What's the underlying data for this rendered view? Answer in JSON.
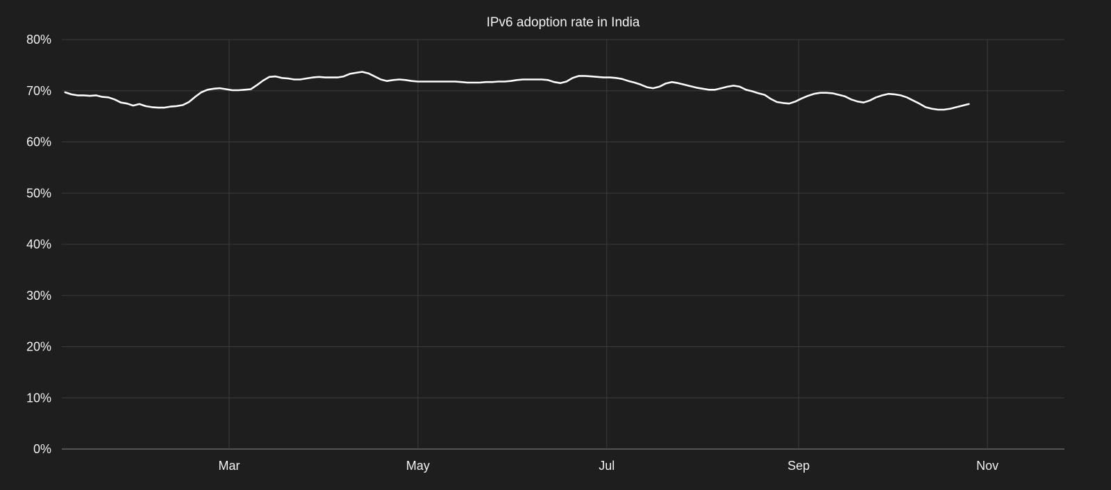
{
  "chart_data": {
    "type": "line",
    "title": "IPv6 adoption rate in India",
    "xlabel": "",
    "ylabel": "",
    "grid": true,
    "legend": "none",
    "colors": {
      "background": "#1e1e1e",
      "line": "#ffffff",
      "grid": "#3c3c3c",
      "text": "#f2f2f2"
    },
    "y_ticks": [
      "0%",
      "10%",
      "20%",
      "30%",
      "40%",
      "50%",
      "60%",
      "70%",
      "80%"
    ],
    "ylim": [
      0,
      80
    ],
    "x_ticks": [
      {
        "label": "Mar",
        "day": 59
      },
      {
        "label": "May",
        "day": 120
      },
      {
        "label": "Jul",
        "day": 181
      },
      {
        "label": "Sep",
        "day": 243
      },
      {
        "label": "Nov",
        "day": 304
      }
    ],
    "xlim": [
      6,
      329
    ],
    "series": [
      {
        "values": [
          [
            6,
            69.7
          ],
          [
            8,
            69.3
          ],
          [
            10,
            69.1
          ],
          [
            12,
            69.1
          ],
          [
            14,
            69.0
          ],
          [
            16,
            69.1
          ],
          [
            18,
            68.8
          ],
          [
            20,
            68.7
          ],
          [
            22,
            68.3
          ],
          [
            24,
            67.7
          ],
          [
            26,
            67.5
          ],
          [
            28,
            67.1
          ],
          [
            30,
            67.4
          ],
          [
            32,
            67.0
          ],
          [
            34,
            66.8
          ],
          [
            36,
            66.7
          ],
          [
            38,
            66.7
          ],
          [
            40,
            66.9
          ],
          [
            42,
            67.0
          ],
          [
            44,
            67.2
          ],
          [
            46,
            67.8
          ],
          [
            48,
            68.8
          ],
          [
            50,
            69.7
          ],
          [
            52,
            70.2
          ],
          [
            54,
            70.4
          ],
          [
            56,
            70.5
          ],
          [
            58,
            70.3
          ],
          [
            60,
            70.1
          ],
          [
            62,
            70.1
          ],
          [
            64,
            70.2
          ],
          [
            66,
            70.3
          ],
          [
            68,
            71.1
          ],
          [
            70,
            72.0
          ],
          [
            72,
            72.7
          ],
          [
            74,
            72.8
          ],
          [
            76,
            72.5
          ],
          [
            78,
            72.4
          ],
          [
            80,
            72.2
          ],
          [
            82,
            72.2
          ],
          [
            84,
            72.4
          ],
          [
            86,
            72.6
          ],
          [
            88,
            72.7
          ],
          [
            90,
            72.6
          ],
          [
            92,
            72.6
          ],
          [
            94,
            72.6
          ],
          [
            96,
            72.8
          ],
          [
            98,
            73.3
          ],
          [
            100,
            73.5
          ],
          [
            102,
            73.7
          ],
          [
            104,
            73.4
          ],
          [
            106,
            72.8
          ],
          [
            108,
            72.2
          ],
          [
            110,
            71.9
          ],
          [
            112,
            72.1
          ],
          [
            114,
            72.2
          ],
          [
            116,
            72.1
          ],
          [
            118,
            71.9
          ],
          [
            120,
            71.8
          ],
          [
            122,
            71.8
          ],
          [
            124,
            71.8
          ],
          [
            126,
            71.8
          ],
          [
            128,
            71.8
          ],
          [
            130,
            71.8
          ],
          [
            132,
            71.8
          ],
          [
            134,
            71.7
          ],
          [
            136,
            71.6
          ],
          [
            138,
            71.6
          ],
          [
            140,
            71.6
          ],
          [
            142,
            71.7
          ],
          [
            144,
            71.7
          ],
          [
            146,
            71.8
          ],
          [
            148,
            71.8
          ],
          [
            150,
            71.9
          ],
          [
            152,
            72.1
          ],
          [
            154,
            72.2
          ],
          [
            156,
            72.2
          ],
          [
            158,
            72.2
          ],
          [
            160,
            72.2
          ],
          [
            162,
            72.1
          ],
          [
            164,
            71.7
          ],
          [
            166,
            71.5
          ],
          [
            168,
            71.8
          ],
          [
            170,
            72.5
          ],
          [
            172,
            72.9
          ],
          [
            174,
            72.9
          ],
          [
            176,
            72.8
          ],
          [
            178,
            72.7
          ],
          [
            180,
            72.6
          ],
          [
            182,
            72.6
          ],
          [
            184,
            72.5
          ],
          [
            186,
            72.3
          ],
          [
            188,
            71.9
          ],
          [
            190,
            71.6
          ],
          [
            192,
            71.2
          ],
          [
            194,
            70.7
          ],
          [
            196,
            70.5
          ],
          [
            198,
            70.8
          ],
          [
            200,
            71.4
          ],
          [
            202,
            71.7
          ],
          [
            204,
            71.5
          ],
          [
            206,
            71.2
          ],
          [
            208,
            70.9
          ],
          [
            210,
            70.6
          ],
          [
            212,
            70.4
          ],
          [
            214,
            70.2
          ],
          [
            216,
            70.2
          ],
          [
            218,
            70.5
          ],
          [
            220,
            70.8
          ],
          [
            222,
            71.0
          ],
          [
            224,
            70.8
          ],
          [
            226,
            70.2
          ],
          [
            228,
            69.9
          ],
          [
            230,
            69.5
          ],
          [
            232,
            69.2
          ],
          [
            234,
            68.4
          ],
          [
            236,
            67.8
          ],
          [
            238,
            67.6
          ],
          [
            240,
            67.5
          ],
          [
            242,
            67.9
          ],
          [
            244,
            68.5
          ],
          [
            246,
            69.0
          ],
          [
            248,
            69.4
          ],
          [
            250,
            69.6
          ],
          [
            252,
            69.6
          ],
          [
            254,
            69.5
          ],
          [
            256,
            69.2
          ],
          [
            258,
            68.9
          ],
          [
            260,
            68.3
          ],
          [
            262,
            67.9
          ],
          [
            264,
            67.7
          ],
          [
            266,
            68.1
          ],
          [
            268,
            68.7
          ],
          [
            270,
            69.1
          ],
          [
            272,
            69.4
          ],
          [
            274,
            69.3
          ],
          [
            276,
            69.1
          ],
          [
            278,
            68.7
          ],
          [
            280,
            68.1
          ],
          [
            282,
            67.5
          ],
          [
            284,
            66.8
          ],
          [
            286,
            66.5
          ],
          [
            288,
            66.3
          ],
          [
            290,
            66.3
          ],
          [
            292,
            66.5
          ],
          [
            294,
            66.8
          ],
          [
            296,
            67.1
          ],
          [
            298,
            67.4
          ]
        ]
      }
    ]
  }
}
